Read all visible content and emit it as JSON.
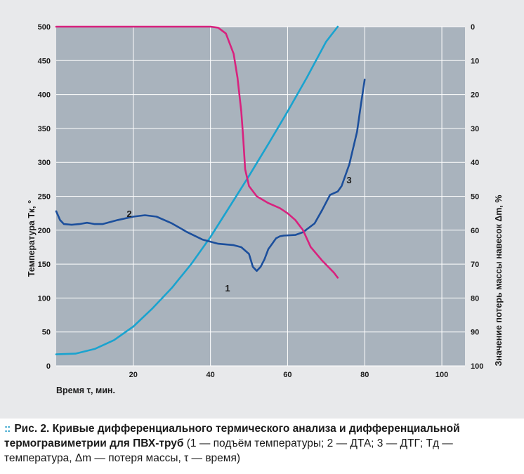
{
  "chart_data": {
    "type": "line",
    "xlabel": "Время τ, мин.",
    "ylabel_left": "Температура Tк, °",
    "ylabel_right": "Значение потерь массы навесок Δm, %",
    "x_ticks": [
      20,
      40,
      60,
      80,
      100
    ],
    "xlim": [
      0,
      106
    ],
    "ylim_left": [
      0,
      500
    ],
    "y_ticks_left": [
      0,
      50,
      100,
      150,
      200,
      250,
      300,
      350,
      400,
      450,
      500
    ],
    "ylim_right": [
      100,
      0
    ],
    "y_ticks_right": [
      0,
      10,
      20,
      30,
      40,
      50,
      60,
      70,
      80,
      90,
      100
    ],
    "grid": true,
    "background": "#a9b3bd",
    "series": [
      {
        "name": "1",
        "axis": "left",
        "color": "#1aa3cf",
        "points": [
          [
            0,
            17
          ],
          [
            5,
            18
          ],
          [
            10,
            25
          ],
          [
            15,
            38
          ],
          [
            20,
            58
          ],
          [
            25,
            85
          ],
          [
            30,
            115
          ],
          [
            35,
            150
          ],
          [
            40,
            190
          ],
          [
            45,
            235
          ],
          [
            50,
            280
          ],
          [
            55,
            327
          ],
          [
            60,
            375
          ],
          [
            65,
            425
          ],
          [
            70,
            478
          ],
          [
            73,
            500
          ]
        ]
      },
      {
        "name": "2",
        "axis": "left",
        "color": "#1c4f9c",
        "points": [
          [
            0,
            228
          ],
          [
            1,
            215
          ],
          [
            2,
            209
          ],
          [
            4,
            208
          ],
          [
            6,
            209
          ],
          [
            8,
            211
          ],
          [
            10,
            209
          ],
          [
            12,
            209
          ],
          [
            16,
            215
          ],
          [
            20,
            220
          ],
          [
            23,
            222
          ],
          [
            26,
            220
          ],
          [
            30,
            210
          ],
          [
            34,
            197
          ],
          [
            38,
            186
          ],
          [
            42,
            180
          ],
          [
            46,
            178
          ],
          [
            48,
            175
          ],
          [
            50,
            165
          ],
          [
            51,
            146
          ],
          [
            52,
            140
          ],
          [
            53,
            146
          ],
          [
            54,
            157
          ],
          [
            55,
            172
          ],
          [
            56,
            180
          ],
          [
            57,
            188
          ],
          [
            58,
            191
          ],
          [
            59,
            192
          ],
          [
            62,
            193
          ],
          [
            64,
            197
          ],
          [
            67,
            210
          ],
          [
            69,
            230
          ],
          [
            71,
            252
          ],
          [
            73,
            257
          ],
          [
            74,
            265
          ],
          [
            76,
            297
          ],
          [
            78,
            345
          ],
          [
            79,
            385
          ],
          [
            80,
            422
          ]
        ]
      },
      {
        "name": "3",
        "axis": "right",
        "color": "#d8227e",
        "points": [
          [
            0,
            0
          ],
          [
            20,
            0
          ],
          [
            40,
            0
          ],
          [
            42,
            0.3
          ],
          [
            44,
            2
          ],
          [
            46,
            8
          ],
          [
            47,
            15
          ],
          [
            48,
            25
          ],
          [
            48.5,
            33
          ],
          [
            49,
            42
          ],
          [
            50,
            47
          ],
          [
            52,
            50
          ],
          [
            55,
            52
          ],
          [
            58,
            53.5
          ],
          [
            60,
            55
          ],
          [
            62,
            57
          ],
          [
            64,
            60
          ],
          [
            66,
            65
          ],
          [
            69,
            69
          ],
          [
            72,
            72.5
          ],
          [
            73,
            74
          ]
        ]
      }
    ],
    "annotations": [
      "1",
      "2",
      "3"
    ]
  },
  "caption": {
    "bullet": "::",
    "head": "Рис. 2. Кривые дифференциального термического анализа и дифференциальной термогравиметрии для ПВХ-труб",
    "rest": "(1 — подъём температуры; 2 — ДТА; 3 — ДТГ; Tд — температура, Δm — потеря массы, τ — время)"
  }
}
